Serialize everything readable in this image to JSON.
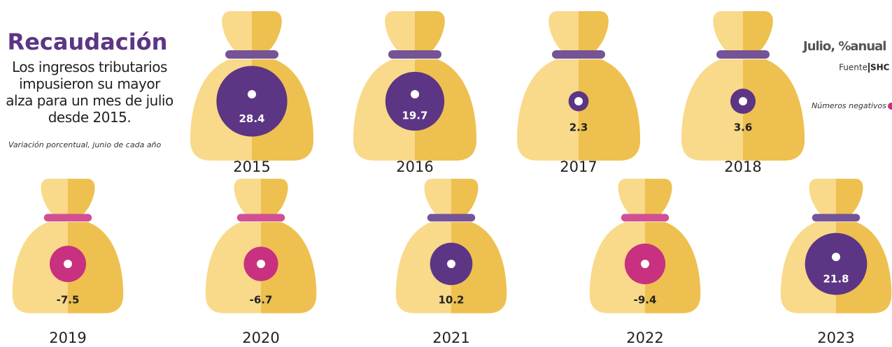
{
  "chart_data": {
    "type": "bag-bubble",
    "title": "Recaudación",
    "subtitle": "Los ingresos tributarios impusieron su mayor alza para un mes de julio desde 2015.",
    "note": "Variación porcentual, junio de cada año",
    "unit_label": "Julio, %anual",
    "source_label": "Fuente",
    "source": "SHC",
    "legend": {
      "label": "Números negativos"
    },
    "categories": [
      "2015",
      "2016",
      "2017",
      "2018",
      "2019",
      "2020",
      "2021",
      "2022",
      "2023"
    ],
    "values": [
      28.4,
      19.7,
      2.3,
      3.6,
      -7.5,
      -6.7,
      10.2,
      -9.4,
      21.8
    ],
    "positive_color": "#5c3584",
    "negative_color": "#c8317f"
  }
}
